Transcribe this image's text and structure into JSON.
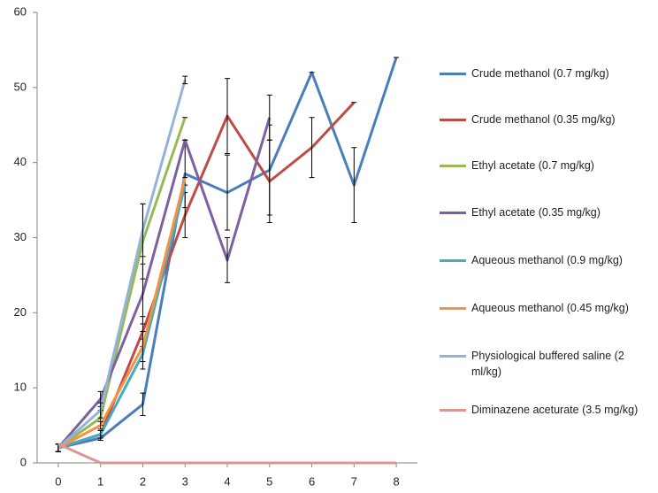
{
  "chart_data": {
    "type": "line",
    "x": [
      0,
      1,
      2,
      3,
      4,
      5,
      6,
      7,
      8
    ],
    "xlim": [
      -0.5,
      8.5
    ],
    "xticks": [
      0,
      1,
      2,
      3,
      4,
      5,
      6,
      7,
      8
    ],
    "ylim": [
      0,
      60
    ],
    "yticks": [
      0,
      10,
      20,
      30,
      40,
      50,
      60
    ],
    "series": [
      {
        "name": "Crude methanol (0.7 mg/kg)",
        "color": "#4a7ebb",
        "values": [
          2,
          3.3,
          7.8,
          38.5,
          36,
          39,
          52,
          37,
          54
        ],
        "errors": [
          0.5,
          0.3,
          1.5,
          4.5,
          5,
          6,
          0,
          5,
          0
        ]
      },
      {
        "name": "Crude methanol (0.35 mg/kg)",
        "color": "#be4b48",
        "values": [
          2,
          3.8,
          17.5,
          33,
          46.2,
          37.5,
          42,
          48,
          null
        ],
        "errors": [
          0.5,
          0.5,
          2,
          3,
          5,
          5.5,
          4,
          0,
          null
        ]
      },
      {
        "name": "Ethyl acetate (0.7 mg/kg)",
        "color": "#98b954",
        "values": [
          2,
          6,
          29.5,
          46,
          null,
          null,
          null,
          null,
          null
        ],
        "errors": [
          0.5,
          1,
          5,
          0,
          null,
          null,
          null,
          null,
          null
        ]
      },
      {
        "name": "Ethyl acetate (0.35 mg/kg)",
        "color": "#7d60a0",
        "values": [
          2,
          8.5,
          22.5,
          43,
          27,
          46,
          null,
          null,
          null
        ],
        "errors": [
          0.5,
          1,
          4,
          0,
          3,
          3,
          null,
          null,
          null
        ]
      },
      {
        "name": "Aqueous methanol (0.9 mg/kg)",
        "color": "#46aac5",
        "values": [
          2,
          3.8,
          14.5,
          37,
          null,
          null,
          null,
          null,
          null
        ],
        "errors": [
          0.5,
          0.5,
          2,
          0,
          null,
          null,
          null,
          null,
          null
        ]
      },
      {
        "name": "Aqueous methanol (0.45 mg/kg)",
        "color": "#f69240",
        "values": [
          2,
          5,
          15.5,
          38,
          null,
          null,
          null,
          null,
          null
        ],
        "errors": [
          0.5,
          0.5,
          2,
          0,
          null,
          null,
          null,
          null,
          null
        ]
      },
      {
        "name": "Physiological buffered saline (2 ml/kg)",
        "color": "#95b3d7",
        "values": [
          2,
          7,
          31,
          51,
          null,
          null,
          null,
          null,
          null
        ],
        "errors": [
          0.5,
          1,
          3.5,
          0.5,
          null,
          null,
          null,
          null,
          null
        ]
      },
      {
        "name": "Diminazene aceturate (3.5 mg/kg)",
        "color": "#d99694",
        "values": [
          2.5,
          0,
          0,
          0,
          0,
          0,
          0,
          0,
          0
        ]
      }
    ]
  }
}
